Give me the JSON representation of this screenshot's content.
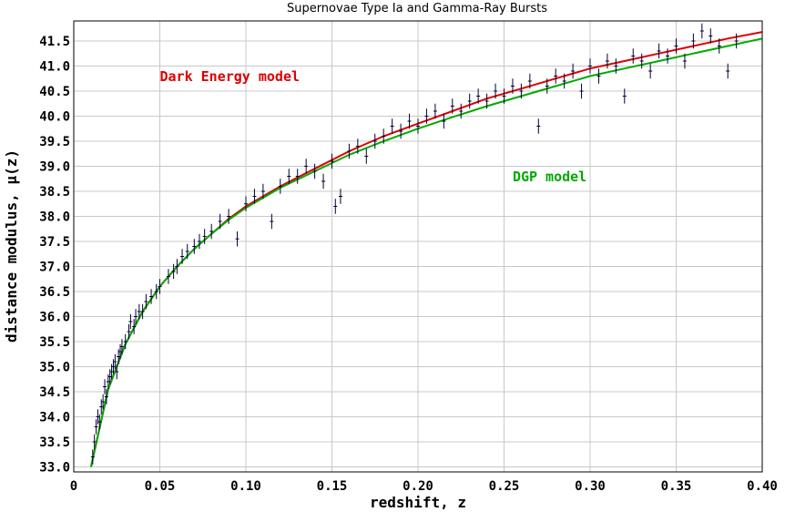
{
  "chart_data": {
    "type": "scatter",
    "title": "Supernovae Type Ia and Gamma-Ray Bursts",
    "xlabel": "redshift, z",
    "ylabel": "distance modulus, μ(z)",
    "xlim": [
      0,
      0.4
    ],
    "ylim": [
      32.9,
      41.9
    ],
    "xticks": [
      "0",
      "0.05",
      "0.10",
      "0.15",
      "0.20",
      "0.25",
      "0.30",
      "0.35",
      "0.40"
    ],
    "xtick_values": [
      0,
      0.05,
      0.1,
      0.15,
      0.2,
      0.25,
      0.3,
      0.35,
      0.4
    ],
    "yticks": [
      "33.0",
      "33.5",
      "34.0",
      "34.5",
      "35.0",
      "35.5",
      "36.0",
      "36.5",
      "37.0",
      "37.5",
      "38.0",
      "38.5",
      "39.0",
      "39.5",
      "40.0",
      "40.5",
      "41.0",
      "41.5"
    ],
    "ytick_values": [
      33.0,
      33.5,
      34.0,
      34.5,
      35.0,
      35.5,
      36.0,
      36.5,
      37.0,
      37.5,
      38.0,
      38.5,
      39.0,
      39.5,
      40.0,
      40.5,
      41.0,
      41.5
    ],
    "grid": true,
    "series": [
      {
        "name": "Dark Energy model",
        "kind": "line",
        "color": "#dd0000",
        "x": [
          0.01,
          0.02,
          0.03,
          0.04,
          0.05,
          0.06,
          0.07,
          0.08,
          0.09,
          0.1,
          0.12,
          0.14,
          0.16,
          0.18,
          0.2,
          0.22,
          0.24,
          0.26,
          0.28,
          0.3,
          0.32,
          0.34,
          0.36,
          0.38,
          0.4
        ],
        "y": [
          33.0,
          34.55,
          35.45,
          36.1,
          36.6,
          37.0,
          37.35,
          37.65,
          37.95,
          38.2,
          38.6,
          38.95,
          39.3,
          39.6,
          39.85,
          40.1,
          40.35,
          40.55,
          40.75,
          40.95,
          41.1,
          41.25,
          41.4,
          41.55,
          41.68
        ]
      },
      {
        "name": "DGP model",
        "kind": "line",
        "color": "#00aa00",
        "x": [
          0.01,
          0.02,
          0.03,
          0.04,
          0.05,
          0.06,
          0.07,
          0.08,
          0.09,
          0.1,
          0.12,
          0.14,
          0.16,
          0.18,
          0.2,
          0.22,
          0.24,
          0.26,
          0.28,
          0.3,
          0.32,
          0.34,
          0.36,
          0.38,
          0.4
        ],
        "y": [
          33.0,
          34.55,
          35.45,
          36.1,
          36.6,
          37.0,
          37.35,
          37.65,
          37.93,
          38.17,
          38.57,
          38.9,
          39.23,
          39.5,
          39.75,
          39.98,
          40.2,
          40.4,
          40.6,
          40.8,
          40.95,
          41.1,
          41.25,
          41.4,
          41.55
        ]
      },
      {
        "name": "",
        "kind": "errorbar-scatter",
        "color": "#000033",
        "points": [
          [
            0.011,
            33.2,
            0.15
          ],
          [
            0.012,
            33.5,
            0.15
          ],
          [
            0.013,
            33.8,
            0.15
          ],
          [
            0.014,
            34.0,
            0.15
          ],
          [
            0.015,
            33.9,
            0.15
          ],
          [
            0.016,
            34.2,
            0.15
          ],
          [
            0.017,
            34.3,
            0.15
          ],
          [
            0.018,
            34.6,
            0.15
          ],
          [
            0.019,
            34.4,
            0.15
          ],
          [
            0.02,
            34.7,
            0.15
          ],
          [
            0.021,
            34.8,
            0.15
          ],
          [
            0.022,
            34.9,
            0.15
          ],
          [
            0.023,
            35.0,
            0.15
          ],
          [
            0.024,
            35.1,
            0.15
          ],
          [
            0.025,
            34.9,
            0.15
          ],
          [
            0.026,
            35.2,
            0.15
          ],
          [
            0.027,
            35.3,
            0.15
          ],
          [
            0.028,
            35.4,
            0.15
          ],
          [
            0.03,
            35.5,
            0.15
          ],
          [
            0.032,
            35.7,
            0.15
          ],
          [
            0.033,
            35.9,
            0.15
          ],
          [
            0.035,
            35.8,
            0.15
          ],
          [
            0.036,
            36.0,
            0.15
          ],
          [
            0.038,
            36.1,
            0.15
          ],
          [
            0.04,
            36.1,
            0.15
          ],
          [
            0.042,
            36.3,
            0.15
          ],
          [
            0.045,
            36.4,
            0.15
          ],
          [
            0.048,
            36.5,
            0.15
          ],
          [
            0.05,
            36.6,
            0.15
          ],
          [
            0.055,
            36.8,
            0.15
          ],
          [
            0.058,
            36.9,
            0.15
          ],
          [
            0.06,
            37.0,
            0.15
          ],
          [
            0.063,
            37.2,
            0.15
          ],
          [
            0.066,
            37.3,
            0.15
          ],
          [
            0.07,
            37.4,
            0.15
          ],
          [
            0.073,
            37.5,
            0.15
          ],
          [
            0.076,
            37.6,
            0.15
          ],
          [
            0.08,
            37.7,
            0.15
          ],
          [
            0.085,
            37.9,
            0.15
          ],
          [
            0.09,
            38.0,
            0.15
          ],
          [
            0.095,
            37.55,
            0.15
          ],
          [
            0.1,
            38.25,
            0.15
          ],
          [
            0.105,
            38.4,
            0.15
          ],
          [
            0.11,
            38.5,
            0.15
          ],
          [
            0.115,
            37.9,
            0.15
          ],
          [
            0.12,
            38.6,
            0.15
          ],
          [
            0.125,
            38.8,
            0.15
          ],
          [
            0.13,
            38.8,
            0.15
          ],
          [
            0.135,
            39.0,
            0.15
          ],
          [
            0.14,
            38.9,
            0.15
          ],
          [
            0.145,
            38.7,
            0.15
          ],
          [
            0.15,
            39.1,
            0.15
          ],
          [
            0.152,
            38.2,
            0.15
          ],
          [
            0.155,
            38.4,
            0.15
          ],
          [
            0.16,
            39.3,
            0.15
          ],
          [
            0.165,
            39.4,
            0.15
          ],
          [
            0.17,
            39.2,
            0.15
          ],
          [
            0.175,
            39.5,
            0.15
          ],
          [
            0.18,
            39.6,
            0.15
          ],
          [
            0.185,
            39.8,
            0.15
          ],
          [
            0.19,
            39.7,
            0.15
          ],
          [
            0.195,
            39.9,
            0.15
          ],
          [
            0.2,
            39.8,
            0.15
          ],
          [
            0.205,
            40.0,
            0.15
          ],
          [
            0.21,
            40.1,
            0.15
          ],
          [
            0.215,
            39.9,
            0.15
          ],
          [
            0.22,
            40.2,
            0.15
          ],
          [
            0.225,
            40.1,
            0.15
          ],
          [
            0.23,
            40.3,
            0.15
          ],
          [
            0.235,
            40.4,
            0.15
          ],
          [
            0.24,
            40.3,
            0.15
          ],
          [
            0.245,
            40.5,
            0.15
          ],
          [
            0.25,
            40.4,
            0.15
          ],
          [
            0.255,
            40.6,
            0.15
          ],
          [
            0.26,
            40.5,
            0.15
          ],
          [
            0.265,
            40.7,
            0.15
          ],
          [
            0.27,
            39.8,
            0.15
          ],
          [
            0.275,
            40.6,
            0.15
          ],
          [
            0.28,
            40.8,
            0.15
          ],
          [
            0.285,
            40.7,
            0.15
          ],
          [
            0.29,
            40.9,
            0.15
          ],
          [
            0.295,
            40.5,
            0.15
          ],
          [
            0.3,
            41.0,
            0.15
          ],
          [
            0.305,
            40.8,
            0.15
          ],
          [
            0.31,
            41.1,
            0.15
          ],
          [
            0.315,
            41.0,
            0.15
          ],
          [
            0.32,
            40.4,
            0.15
          ],
          [
            0.325,
            41.2,
            0.15
          ],
          [
            0.33,
            41.1,
            0.15
          ],
          [
            0.335,
            40.9,
            0.15
          ],
          [
            0.34,
            41.3,
            0.15
          ],
          [
            0.345,
            41.2,
            0.15
          ],
          [
            0.35,
            41.4,
            0.15
          ],
          [
            0.355,
            41.1,
            0.15
          ],
          [
            0.36,
            41.5,
            0.15
          ],
          [
            0.365,
            41.7,
            0.15
          ],
          [
            0.37,
            41.6,
            0.15
          ],
          [
            0.375,
            41.4,
            0.15
          ],
          [
            0.38,
            40.9,
            0.15
          ],
          [
            0.385,
            41.5,
            0.15
          ]
        ]
      }
    ],
    "annotations": [
      {
        "text": "Dark Energy model",
        "color": "#dd0000",
        "x": 0.05,
        "y": 40.7
      },
      {
        "text": "DGP model",
        "color": "#00aa00",
        "x": 0.255,
        "y": 38.7
      }
    ]
  }
}
